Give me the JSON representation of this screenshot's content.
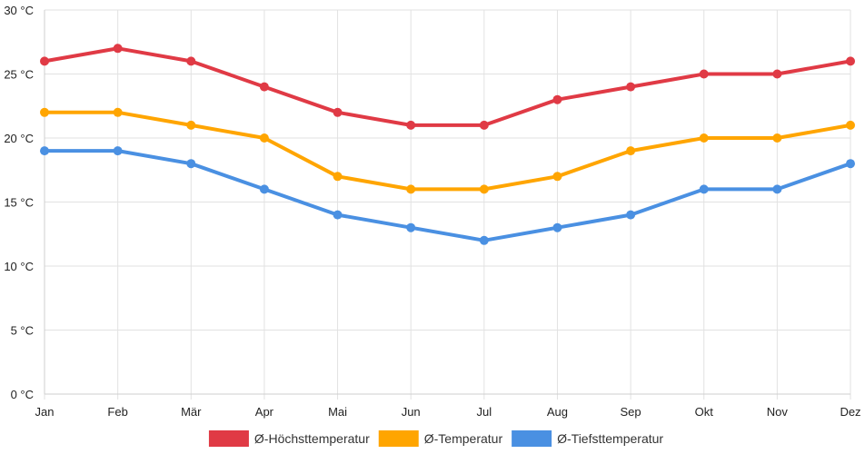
{
  "chart_data": {
    "type": "line",
    "title": "",
    "xlabel": "",
    "ylabel": "",
    "categories": [
      "Jan",
      "Feb",
      "Mär",
      "Apr",
      "Mai",
      "Jun",
      "Jul",
      "Aug",
      "Sep",
      "Okt",
      "Nov",
      "Dez"
    ],
    "ylim": [
      0,
      30
    ],
    "y_ticks": [
      0,
      5,
      10,
      15,
      20,
      25,
      30
    ],
    "y_unit": " °C",
    "grid": true,
    "legend_position": "bottom",
    "series": [
      {
        "name": "Ø-Höchsttemperatur",
        "color": "#e03a45",
        "values": [
          26,
          27,
          26,
          24,
          22,
          21,
          21,
          23,
          24,
          25,
          25,
          26
        ]
      },
      {
        "name": "Ø-Temperatur",
        "color": "#ffa500",
        "values": [
          22,
          22,
          21,
          20,
          17,
          16,
          16,
          17,
          19,
          20,
          20,
          21
        ]
      },
      {
        "name": "Ø-Tiefsttemperatur",
        "color": "#4a90e2",
        "values": [
          19,
          19,
          18,
          16,
          14,
          13,
          12,
          13,
          14,
          16,
          16,
          18
        ]
      }
    ]
  }
}
